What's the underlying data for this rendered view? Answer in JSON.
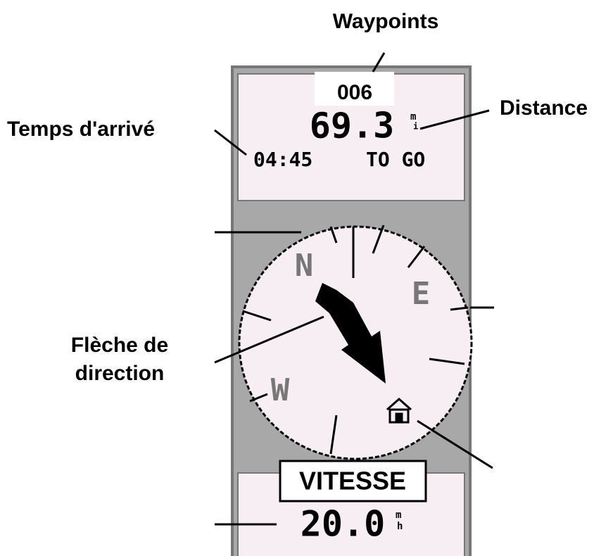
{
  "annotations": {
    "waypoints": "Waypoints",
    "distance": "Distance",
    "eta": "Temps d'arrivé",
    "direction_arrow": [
      "Flèche de",
      "direction"
    ]
  },
  "screen": {
    "waypoint": "006",
    "distance": "69.3",
    "distance_unit": [
      "m",
      "i"
    ],
    "time": "04:45",
    "time_caption": "TO GO",
    "compass": {
      "north": "N",
      "east": "E",
      "west": "W"
    },
    "speed_label": "VITESSE",
    "speed": "20.0",
    "speed_unit": [
      "m",
      "h"
    ]
  }
}
